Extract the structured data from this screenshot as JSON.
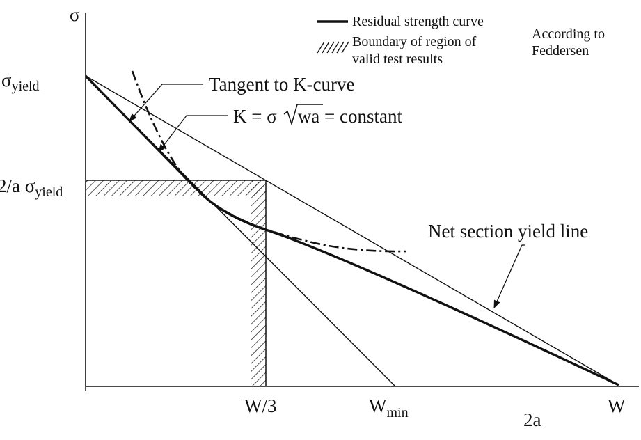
{
  "axes": {
    "y_label": "σ",
    "x_label": "2a"
  },
  "y_ticks": {
    "yield_main": "σ",
    "yield_sub": "yield",
    "two_a_prefix": "2/a σ",
    "two_a_sub": "yield"
  },
  "x_ticks": {
    "w3": "W/3",
    "wmin_main": "W",
    "wmin_sub": "min",
    "w": "W"
  },
  "legend": {
    "residual": "Residual strength curve",
    "boundary_line1": "Boundary of region of",
    "boundary_line2": "valid test results",
    "source_line1": "According to",
    "source_line2": "Feddersen"
  },
  "annotations": {
    "tangent": "Tangent to K-curve",
    "k_prefix": "K = σ",
    "k_radicand": "wa",
    "k_suffix": " = constant",
    "net_section": "Net section yield line"
  },
  "colors": {
    "ink": "#111111",
    "background": "#ffffff"
  }
}
